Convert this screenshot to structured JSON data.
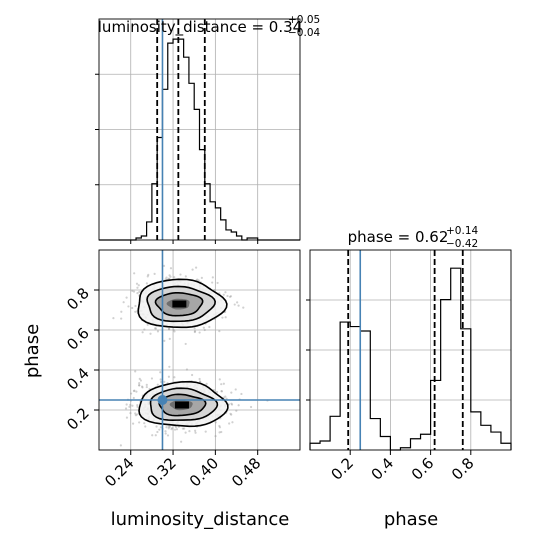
{
  "chart_data": {
    "type": "corner",
    "grid": true,
    "parameters": [
      "luminosity_distance",
      "phase"
    ],
    "truth": {
      "luminosity_distance": 0.3,
      "phase": 0.25
    },
    "panels": [
      {
        "id": "hist-luminosity_distance",
        "type": "histogram",
        "title": {
          "base": "luminosity_distance = 0.34",
          "sup": "+0.05",
          "sub": "−0.04"
        },
        "xlim": [
          0.18,
          0.56
        ],
        "bin_edges": [
          0.18,
          0.19,
          0.2,
          0.21,
          0.22,
          0.23,
          0.24,
          0.25,
          0.26,
          0.27,
          0.28,
          0.29,
          0.3,
          0.31,
          0.32,
          0.33,
          0.34,
          0.35,
          0.36,
          0.37,
          0.38,
          0.39,
          0.4,
          0.41,
          0.42,
          0.43,
          0.44,
          0.45,
          0.46,
          0.47,
          0.48,
          0.49,
          0.5,
          0.51,
          0.52,
          0.53,
          0.54,
          0.55,
          0.56
        ],
        "counts": [
          0,
          0,
          0,
          0,
          0,
          0,
          0,
          1,
          2,
          9,
          28,
          51,
          75,
          98,
          100,
          100,
          91,
          78,
          65,
          45,
          28,
          19,
          16,
          10,
          5,
          4,
          2,
          0,
          1,
          1,
          0,
          0,
          0,
          0,
          0,
          0,
          0,
          0
        ],
        "quantiles": [
          0.29,
          0.33,
          0.38
        ],
        "truth": 0.3
      },
      {
        "id": "scatter-luminosity_distance-phase",
        "type": "2d-density",
        "xlabel": "luminosity_distance",
        "ylabel": "phase",
        "xlim": [
          0.18,
          0.56
        ],
        "ylim": [
          0.0,
          1.0
        ],
        "xticks": [
          "0.24",
          "0.32",
          "0.40",
          "0.48"
        ],
        "yticks": [
          "0.2",
          "0.4",
          "0.6",
          "0.8"
        ],
        "modes": [
          {
            "x": 0.335,
            "y": 0.225,
            "sx": 0.04,
            "sy": 0.055,
            "weight": 0.6
          },
          {
            "x": 0.33,
            "y": 0.73,
            "sx": 0.04,
            "sy": 0.06,
            "weight": 0.4
          }
        ],
        "truth": {
          "x": 0.3,
          "y": 0.25
        }
      },
      {
        "id": "hist-phase",
        "type": "histogram",
        "title": {
          "base": "phase = 0.62",
          "sup": "+0.14",
          "sub": "−0.42"
        },
        "xlabel": "phase",
        "xlim": [
          0.0,
          1.0
        ],
        "xticks": [
          "0.2",
          "0.4",
          "0.6",
          "0.8"
        ],
        "bin_edges": [
          0.0,
          0.05,
          0.1,
          0.15,
          0.2,
          0.25,
          0.3,
          0.35,
          0.4,
          0.45,
          0.5,
          0.55,
          0.6,
          0.65,
          0.7,
          0.75,
          0.8,
          0.85,
          0.9,
          0.95,
          1.0
        ],
        "counts": [
          3,
          4,
          15,
          57,
          55,
          53,
          14,
          6,
          0,
          1,
          5,
          7,
          31,
          67,
          81,
          54,
          17,
          11,
          8,
          3
        ],
        "quantiles": [
          0.19,
          0.62,
          0.76
        ],
        "truth": 0.25
      }
    ]
  }
}
